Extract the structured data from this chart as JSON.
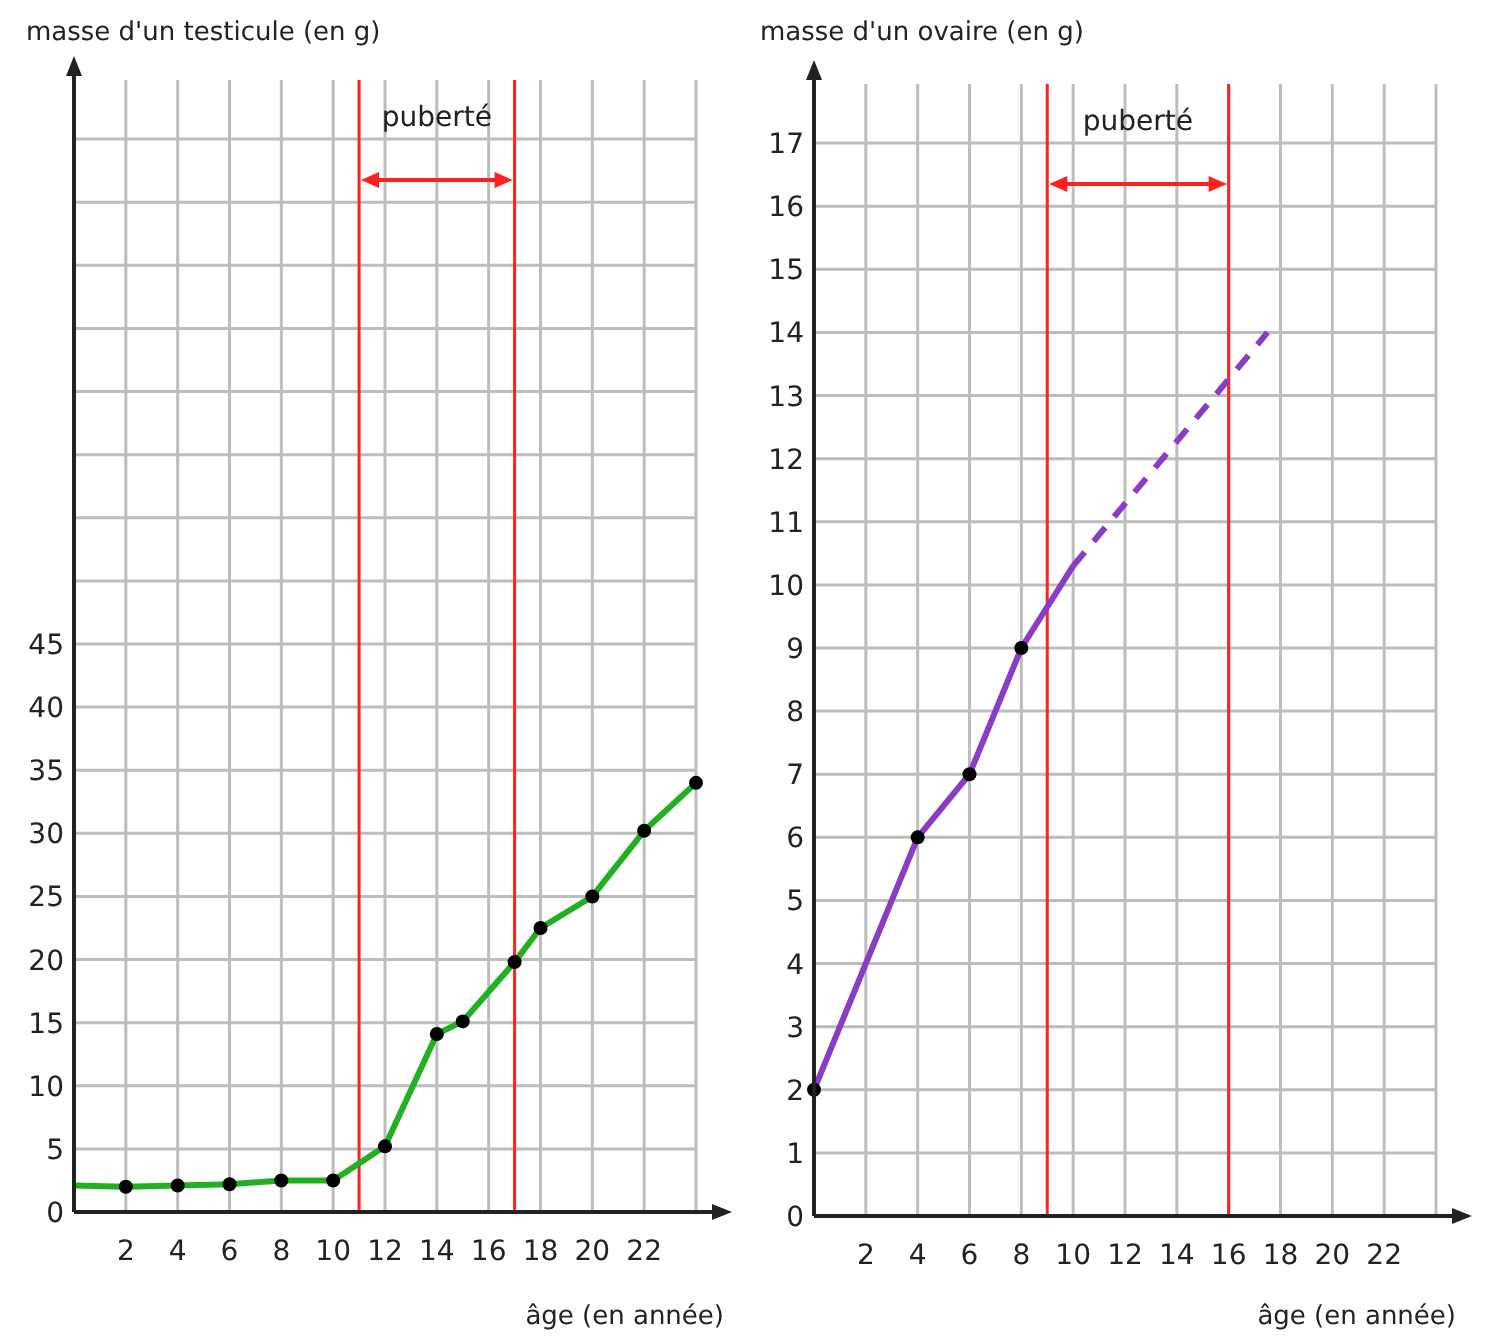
{
  "chart_data": [
    {
      "type": "line",
      "ylabel": "masse d'un testicule (en g)",
      "xlabel": "âge (en année)",
      "xlim": [
        0,
        24
      ],
      "ylim": [
        0,
        90
      ],
      "xticks": [
        2,
        4,
        6,
        8,
        10,
        12,
        14,
        16,
        18,
        20,
        22,
        {
          "value": 24,
          "label": null
        }
      ],
      "yticks": [
        0,
        5,
        10,
        15,
        20,
        25,
        30,
        35,
        40,
        45,
        {
          "value": 50,
          "label": null
        },
        {
          "value": 55,
          "label": null
        },
        {
          "value": 60,
          "label": null
        },
        {
          "value": 65,
          "label": null
        },
        {
          "value": 70,
          "label": null
        },
        {
          "value": 75,
          "label": null
        },
        {
          "value": 80,
          "label": null
        },
        {
          "value": 85,
          "label": null
        }
      ],
      "grid": true,
      "series": [
        {
          "color": "#22b022",
          "x": [
            0,
            2,
            4,
            6,
            8,
            10,
            12,
            14,
            15,
            17,
            18,
            20,
            22,
            24
          ],
          "values": [
            2.1,
            2,
            2.1,
            2.2,
            2.5,
            2.5,
            5.2,
            14.1,
            15.1,
            19.8,
            22.5,
            25,
            30.2,
            34
          ],
          "marker": "none",
          "line_style": "solid"
        },
        {
          "type": "scatter",
          "color": "#000000",
          "x": [
            2,
            4,
            6,
            8,
            10,
            12,
            14,
            15,
            17,
            18,
            20,
            22,
            24
          ],
          "values": [
            2,
            2.1,
            2.2,
            2.5,
            2.5,
            5.2,
            14.1,
            15.1,
            19.8,
            22.5,
            25,
            30.2,
            34
          ],
          "marker": "circle"
        }
      ],
      "ref_lines": [
        {
          "axis": "x",
          "value": 11,
          "color": "#ff2020"
        },
        {
          "axis": "x",
          "value": 17,
          "color": "#ff2020"
        }
      ],
      "annotations": [
        "puberté"
      ]
    },
    {
      "type": "line",
      "ylabel": "masse d'un ovaire (en g)",
      "xlabel": "âge (en année)",
      "xlim": [
        0,
        24
      ],
      "ylim": [
        0,
        18
      ],
      "xticks": [
        2,
        4,
        6,
        8,
        10,
        12,
        14,
        16,
        18,
        20,
        22,
        {
          "value": 24,
          "label": null
        }
      ],
      "yticks": [
        0,
        1,
        2,
        3,
        4,
        5,
        6,
        7,
        8,
        9,
        10,
        11,
        12,
        13,
        14,
        15,
        16,
        17
      ],
      "grid": true,
      "series": [
        {
          "color": "#8a3cc4",
          "x": [
            0,
            4,
            6,
            8,
            10
          ],
          "values": [
            2,
            6,
            7,
            9,
            10.3
          ],
          "marker": "none",
          "line_style": "solid"
        },
        {
          "color": "#8a3cc4",
          "x": [
            10,
            17.5
          ],
          "values": [
            10.3,
            14
          ],
          "marker": "none",
          "line_style": "dashed"
        },
        {
          "type": "scatter",
          "color": "#000000",
          "x": [
            0,
            4,
            6,
            8
          ],
          "values": [
            2,
            6,
            7,
            9
          ],
          "marker": "circle"
        }
      ],
      "ref_lines": [
        {
          "axis": "x",
          "value": 9,
          "color": "#ff2020"
        },
        {
          "axis": "x",
          "value": 16,
          "color": "#ff2020"
        }
      ],
      "annotations": [
        "puberté"
      ]
    }
  ]
}
